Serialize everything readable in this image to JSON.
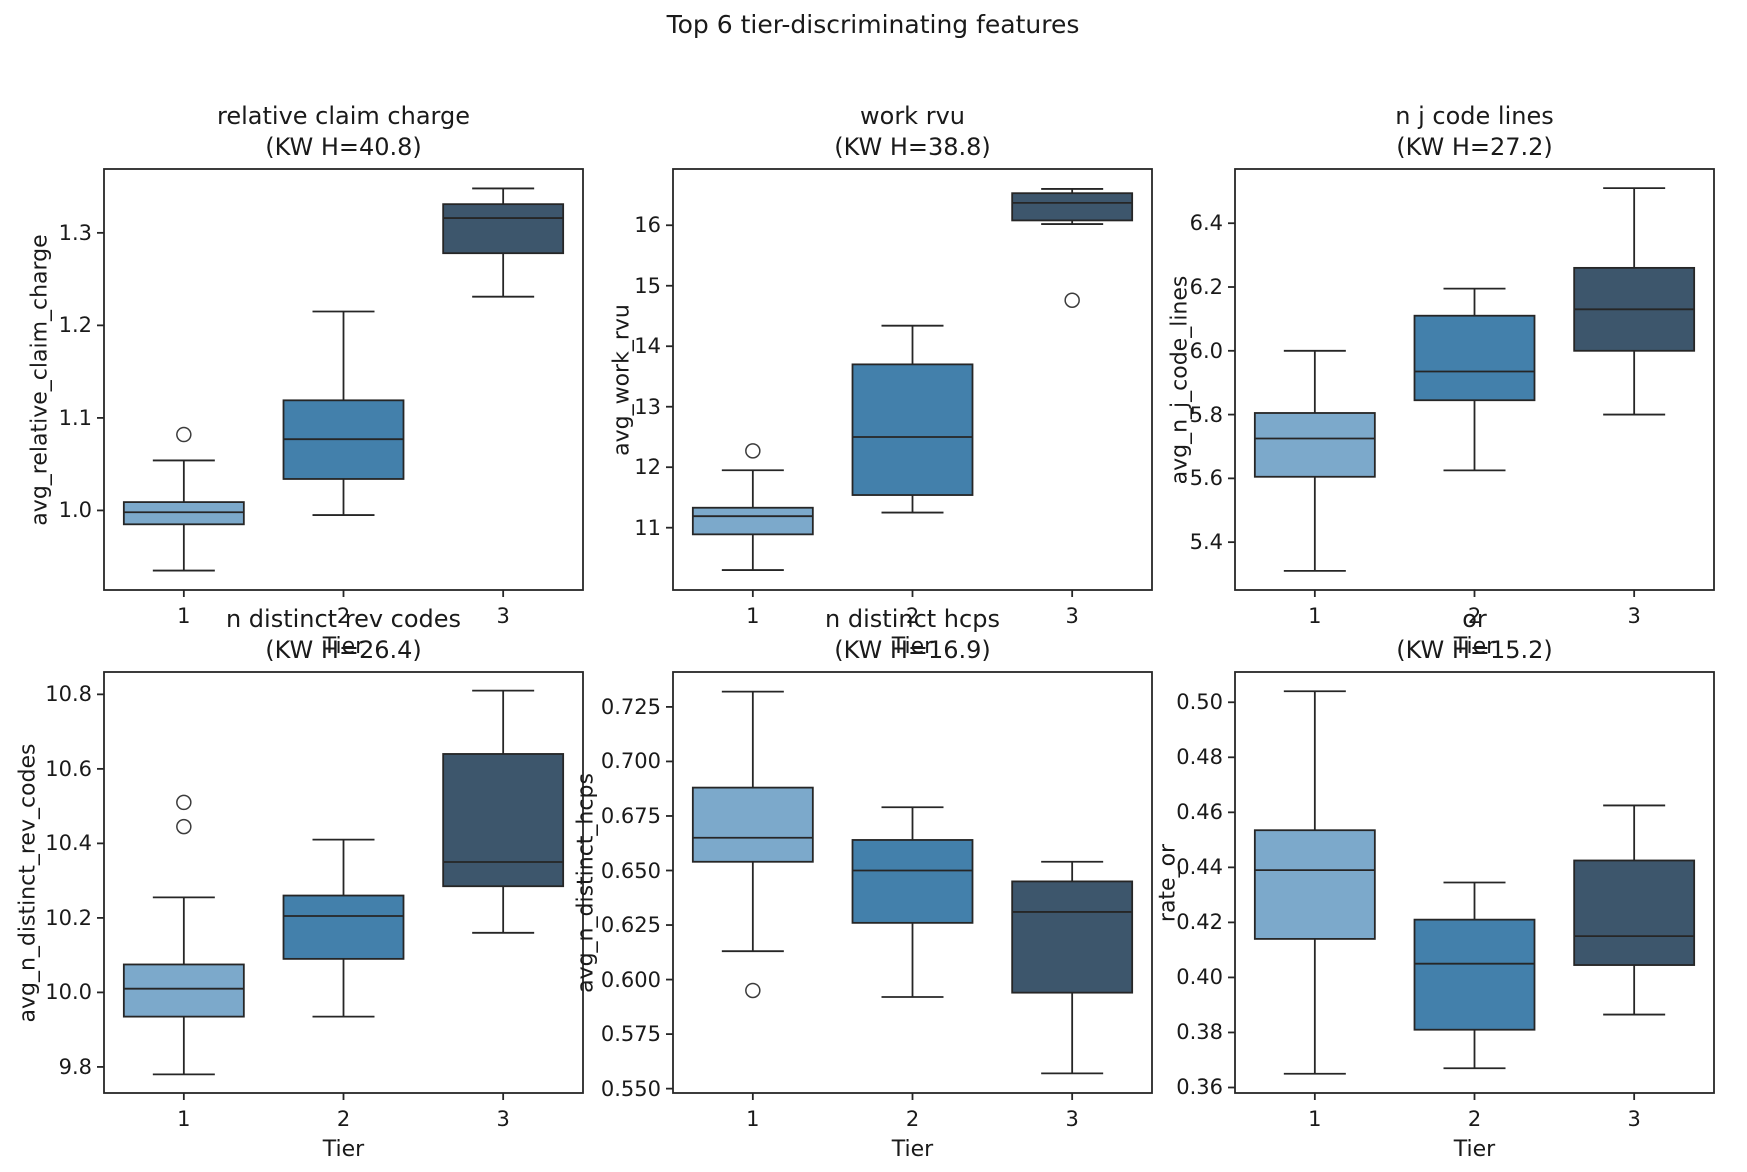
{
  "figure": {
    "suptitle": "Top 6 tier-discriminating features",
    "background": "#ffffff",
    "text_color": "#1a1a1a",
    "axis_color": "#262626",
    "palette": [
      "#7CA9CB",
      "#4380AB",
      "#3D566C"
    ],
    "flier_edge_color": "#3C3C3C",
    "xlabel": "Tier",
    "categories": [
      "1",
      "2",
      "3"
    ]
  },
  "chart_data": [
    {
      "type": "box",
      "title": "relative claim charge",
      "subtitle": "(KW H=40.8)",
      "kw_h": 40.8,
      "xlabel": "Tier",
      "ylabel": "avg_relative_claim_charge",
      "ylim": [
        0.914,
        1.369
      ],
      "yticks": [
        "1.0",
        "1.1",
        "1.2",
        "1.3"
      ],
      "boxes": [
        {
          "tier": "1",
          "whislo": 0.935,
          "q1": 0.985,
          "med": 0.998,
          "q3": 1.009,
          "whishi": 1.054,
          "fliers": [
            1.082
          ]
        },
        {
          "tier": "2",
          "whislo": 0.995,
          "q1": 1.034,
          "med": 1.077,
          "q3": 1.119,
          "whishi": 1.215,
          "fliers": []
        },
        {
          "tier": "3",
          "whislo": 1.231,
          "q1": 1.278,
          "med": 1.316,
          "q3": 1.331,
          "whishi": 1.348,
          "fliers": []
        }
      ]
    },
    {
      "type": "box",
      "title": "work rvu",
      "subtitle": "(KW H=38.8)",
      "kw_h": 38.8,
      "xlabel": "Tier",
      "ylabel": "avg_work_rvu",
      "ylim": [
        9.97,
        16.93
      ],
      "yticks": [
        "11",
        "12",
        "13",
        "14",
        "15",
        "16"
      ],
      "boxes": [
        {
          "tier": "1",
          "whislo": 10.3,
          "q1": 10.89,
          "med": 11.19,
          "q3": 11.33,
          "whishi": 11.95,
          "fliers": [
            12.27
          ]
        },
        {
          "tier": "2",
          "whislo": 11.25,
          "q1": 11.54,
          "med": 12.5,
          "q3": 13.7,
          "whishi": 14.34,
          "fliers": []
        },
        {
          "tier": "3",
          "whislo": 16.02,
          "q1": 16.08,
          "med": 16.37,
          "q3": 16.53,
          "whishi": 16.6,
          "fliers": [
            14.76
          ]
        }
      ]
    },
    {
      "type": "box",
      "title": "n j code lines",
      "subtitle": "(KW H=27.2)",
      "kw_h": 27.2,
      "xlabel": "Tier",
      "ylabel": "avg_n_j_code_lines",
      "ylim": [
        5.25,
        6.57
      ],
      "yticks": [
        "5.4",
        "5.6",
        "5.8",
        "6.0",
        "6.2",
        "6.4"
      ],
      "boxes": [
        {
          "tier": "1",
          "whislo": 5.31,
          "q1": 5.605,
          "med": 5.725,
          "q3": 5.805,
          "whishi": 6.0,
          "fliers": []
        },
        {
          "tier": "2",
          "whislo": 5.625,
          "q1": 5.845,
          "med": 5.935,
          "q3": 6.11,
          "whishi": 6.195,
          "fliers": []
        },
        {
          "tier": "3",
          "whislo": 5.8,
          "q1": 6.0,
          "med": 6.13,
          "q3": 6.26,
          "whishi": 6.51,
          "fliers": []
        }
      ]
    },
    {
      "type": "box",
      "title": "n distinct rev codes",
      "subtitle": "(KW H=26.4)",
      "kw_h": 26.4,
      "xlabel": "Tier",
      "ylabel": "avg_n_distinct_rev_codes",
      "ylim": [
        9.73,
        10.86
      ],
      "yticks": [
        "9.8",
        "10.0",
        "10.2",
        "10.4",
        "10.6",
        "10.8"
      ],
      "boxes": [
        {
          "tier": "1",
          "whislo": 9.78,
          "q1": 9.935,
          "med": 10.01,
          "q3": 10.075,
          "whishi": 10.255,
          "fliers": [
            10.445,
            10.51
          ]
        },
        {
          "tier": "2",
          "whislo": 9.935,
          "q1": 10.09,
          "med": 10.205,
          "q3": 10.26,
          "whishi": 10.41,
          "fliers": []
        },
        {
          "tier": "3",
          "whislo": 10.16,
          "q1": 10.285,
          "med": 10.35,
          "q3": 10.64,
          "whishi": 10.81,
          "fliers": []
        }
      ]
    },
    {
      "type": "box",
      "title": "n distinct hcps",
      "subtitle": "(KW H=16.9)",
      "kw_h": 16.9,
      "xlabel": "Tier",
      "ylabel": "avg_n_distinct_hcps",
      "ylim": [
        0.548,
        0.741
      ],
      "yticks": [
        "0.550",
        "0.575",
        "0.600",
        "0.625",
        "0.650",
        "0.675",
        "0.700",
        "0.725"
      ],
      "boxes": [
        {
          "tier": "1",
          "whislo": 0.613,
          "q1": 0.654,
          "med": 0.665,
          "q3": 0.688,
          "whishi": 0.732,
          "fliers": [
            0.595
          ]
        },
        {
          "tier": "2",
          "whislo": 0.592,
          "q1": 0.626,
          "med": 0.65,
          "q3": 0.664,
          "whishi": 0.679,
          "fliers": []
        },
        {
          "tier": "3",
          "whislo": 0.557,
          "q1": 0.594,
          "med": 0.631,
          "q3": 0.645,
          "whishi": 0.654,
          "fliers": []
        }
      ]
    },
    {
      "type": "box",
      "title": "or",
      "subtitle": "(KW H=15.2)",
      "kw_h": 15.2,
      "xlabel": "Tier",
      "ylabel": "rate_or",
      "ylim": [
        0.358,
        0.511
      ],
      "yticks": [
        "0.36",
        "0.38",
        "0.40",
        "0.42",
        "0.44",
        "0.46",
        "0.48",
        "0.50"
      ],
      "boxes": [
        {
          "tier": "1",
          "whislo": 0.365,
          "q1": 0.414,
          "med": 0.439,
          "q3": 0.4535,
          "whishi": 0.504,
          "fliers": []
        },
        {
          "tier": "2",
          "whislo": 0.367,
          "q1": 0.381,
          "med": 0.405,
          "q3": 0.421,
          "whishi": 0.4345,
          "fliers": []
        },
        {
          "tier": "3",
          "whislo": 0.3865,
          "q1": 0.4045,
          "med": 0.415,
          "q3": 0.4425,
          "whishi": 0.4625,
          "fliers": []
        }
      ]
    }
  ]
}
